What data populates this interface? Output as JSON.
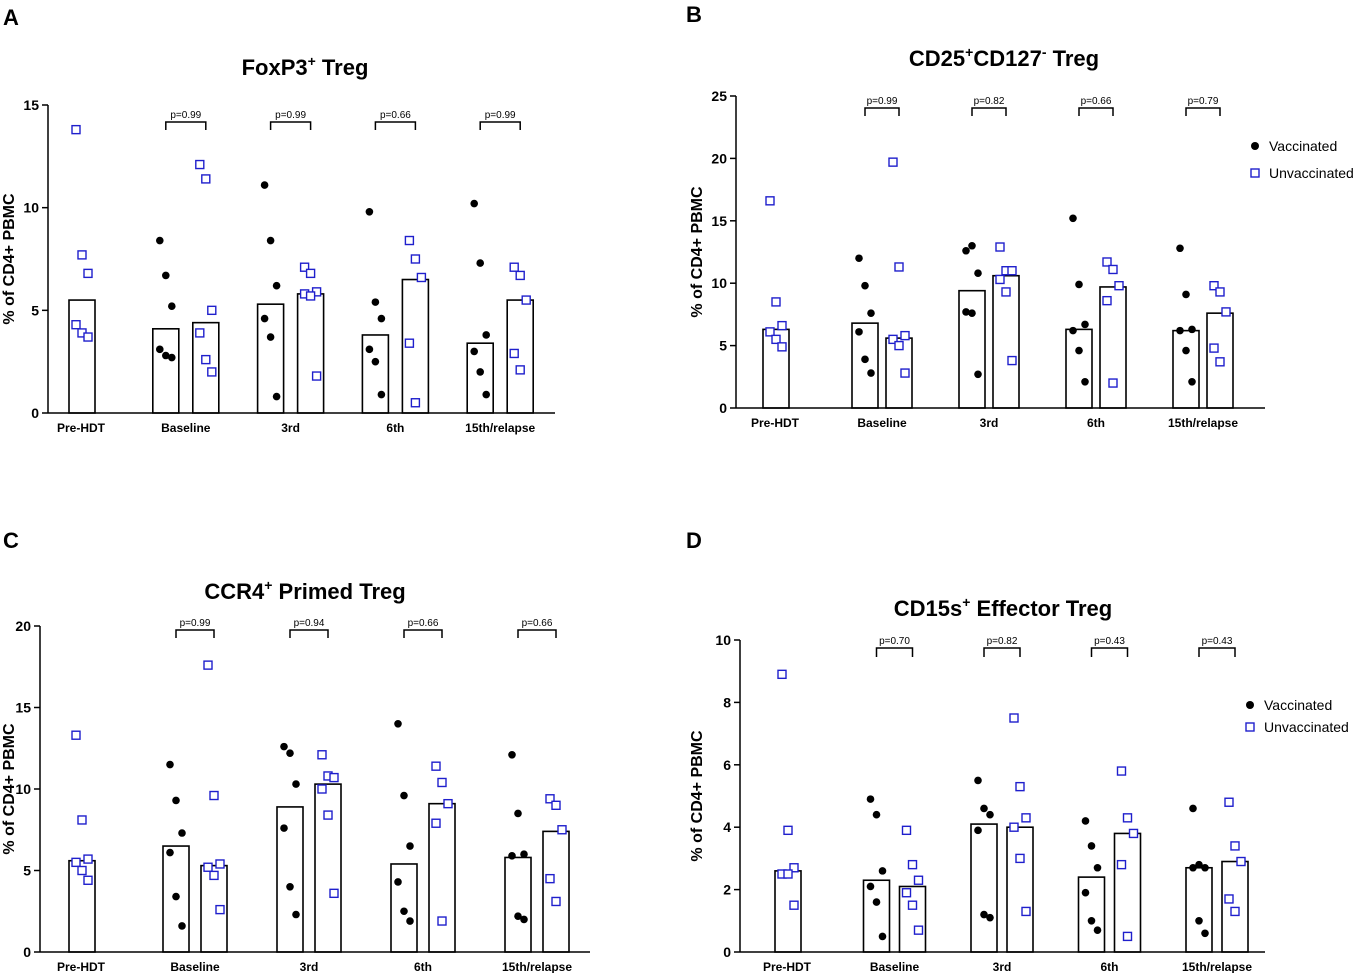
{
  "legend_labels": {
    "vaccinated": "Vaccinated",
    "unvaccinated": "Unvaccinated"
  },
  "colors": {
    "vaccinated": "#000000",
    "unvaccinated": "#1f1fcc",
    "axis": "#000000"
  },
  "chart_data": [
    {
      "letter": "A",
      "type": "bar",
      "title_parts": [
        {
          "t": "FoxP3"
        },
        {
          "t": "+",
          "sup": true
        },
        {
          "t": " Treg"
        }
      ],
      "ylabel": "% of CD4+ PBMC",
      "ylim": [
        0,
        15
      ],
      "yticks": [
        0,
        5,
        10,
        15
      ],
      "legend": "none",
      "categories": [
        "Pre-HDT",
        "Baseline",
        "3rd",
        "6th",
        "15th/relapse"
      ],
      "series": [
        {
          "name": "Vaccinated",
          "bars": [
            null,
            4.1,
            5.3,
            3.8,
            3.4
          ],
          "points": [
            [],
            [
              8.4,
              6.7,
              5.2,
              3.1,
              2.8,
              2.7
            ],
            [
              11.1,
              8.4,
              6.2,
              4.6,
              3.7,
              0.8
            ],
            [
              9.8,
              5.4,
              4.6,
              3.1,
              2.5,
              0.9
            ],
            [
              10.2,
              7.3,
              3.8,
              3.0,
              2.0,
              0.9
            ]
          ]
        },
        {
          "name": "Unvaccinated",
          "bars": [
            5.5,
            4.4,
            5.8,
            6.5,
            5.5
          ],
          "points": [
            [
              13.8,
              7.7,
              6.8,
              4.3,
              3.9,
              3.7
            ],
            [
              12.1,
              11.4,
              5.0,
              3.9,
              2.6,
              2.0
            ],
            [
              7.1,
              6.8,
              5.9,
              5.8,
              5.7,
              1.8
            ],
            [
              8.4,
              7.5,
              6.6,
              3.4,
              0.5
            ],
            [
              7.1,
              6.7,
              5.5,
              2.9,
              2.1
            ]
          ]
        }
      ],
      "annotations": [
        "p=0.99",
        "p=0.99",
        "p=0.66",
        "p=0.99"
      ]
    },
    {
      "letter": "B",
      "type": "bar",
      "title_parts": [
        {
          "t": "CD25"
        },
        {
          "t": "+",
          "sup": true
        },
        {
          "t": "CD127"
        },
        {
          "t": "-",
          "sup": true
        },
        {
          "t": " Treg"
        }
      ],
      "ylabel": "% of CD4+ PBMC",
      "ylim": [
        0,
        25
      ],
      "yticks": [
        0,
        5,
        10,
        15,
        20,
        25
      ],
      "legend": "top-right",
      "categories": [
        "Pre-HDT",
        "Baseline",
        "3rd",
        "6th",
        "15th/relapse"
      ],
      "series": [
        {
          "name": "Vaccinated",
          "bars": [
            null,
            6.8,
            9.4,
            6.3,
            6.2
          ],
          "points": [
            [],
            [
              12.0,
              9.8,
              7.6,
              6.1,
              3.9,
              2.8
            ],
            [
              12.6,
              13.0,
              10.8,
              7.7,
              7.6,
              2.7
            ],
            [
              15.2,
              9.9,
              6.7,
              6.2,
              4.6,
              2.1
            ],
            [
              12.8,
              9.1,
              6.3,
              6.2,
              4.6,
              2.1
            ]
          ]
        },
        {
          "name": "Unvaccinated",
          "bars": [
            6.3,
            5.6,
            10.6,
            9.7,
            7.6
          ],
          "points": [
            [
              16.6,
              8.5,
              6.6,
              6.1,
              5.5,
              4.9
            ],
            [
              19.7,
              11.3,
              5.8,
              5.5,
              5.0,
              2.8
            ],
            [
              12.9,
              11.0,
              11.0,
              10.3,
              9.3,
              3.8
            ],
            [
              11.7,
              11.1,
              9.8,
              8.6,
              2.0
            ],
            [
              9.8,
              9.3,
              7.7,
              4.8,
              3.7
            ]
          ]
        }
      ],
      "annotations": [
        "p=0.99",
        "p=0.82",
        "p=0.66",
        "p=0.79"
      ]
    },
    {
      "letter": "C",
      "type": "bar",
      "title_parts": [
        {
          "t": "CCR4"
        },
        {
          "t": "+",
          "sup": true
        },
        {
          "t": " Primed Treg"
        }
      ],
      "ylabel": "% of CD4+ PBMC",
      "ylim": [
        0,
        20
      ],
      "yticks": [
        0,
        5,
        10,
        15,
        20
      ],
      "legend": "none",
      "categories": [
        "Pre-HDT",
        "Baseline",
        "3rd",
        "6th",
        "15th/relapse"
      ],
      "series": [
        {
          "name": "Vaccinated",
          "bars": [
            null,
            6.5,
            8.9,
            5.4,
            5.8
          ],
          "points": [
            [],
            [
              11.5,
              9.3,
              7.3,
              6.1,
              3.4,
              1.6
            ],
            [
              12.6,
              12.2,
              10.3,
              7.6,
              4.0,
              2.3
            ],
            [
              14.0,
              9.6,
              6.5,
              4.3,
              2.5,
              1.9
            ],
            [
              12.1,
              8.5,
              6.0,
              5.9,
              2.2,
              2.0
            ]
          ]
        },
        {
          "name": "Unvaccinated",
          "bars": [
            5.6,
            5.3,
            10.3,
            9.1,
            7.4
          ],
          "points": [
            [
              13.3,
              8.1,
              5.7,
              5.5,
              5.0,
              4.4
            ],
            [
              17.6,
              9.6,
              5.4,
              5.2,
              4.7,
              2.6
            ],
            [
              12.1,
              10.8,
              10.7,
              10.0,
              8.4,
              3.6
            ],
            [
              11.4,
              10.4,
              9.1,
              7.9,
              1.9
            ],
            [
              9.4,
              9.0,
              7.5,
              4.5,
              3.1
            ]
          ]
        }
      ],
      "annotations": [
        "p=0.99",
        "p=0.94",
        "p=0.66",
        "p=0.66"
      ]
    },
    {
      "letter": "D",
      "type": "bar",
      "title_parts": [
        {
          "t": "CD15s"
        },
        {
          "t": "+",
          "sup": true
        },
        {
          "t": " Effector Treg"
        }
      ],
      "ylabel": "% of CD4+ PBMC",
      "ylim": [
        0,
        10
      ],
      "yticks": [
        0,
        2,
        4,
        6,
        8,
        10
      ],
      "legend": "top-right",
      "categories": [
        "Pre-HDT",
        "Baseline",
        "3rd",
        "6th",
        "15th/relapse"
      ],
      "series": [
        {
          "name": "Vaccinated",
          "bars": [
            null,
            2.3,
            4.1,
            2.4,
            2.7
          ],
          "points": [
            [],
            [
              4.9,
              4.4,
              2.6,
              2.1,
              1.6,
              0.5
            ],
            [
              5.5,
              4.6,
              4.4,
              3.9,
              1.2,
              1.1
            ],
            [
              4.2,
              3.4,
              2.7,
              1.9,
              1.0,
              0.7
            ],
            [
              4.6,
              2.8,
              2.7,
              2.7,
              1.0,
              0.6
            ]
          ]
        },
        {
          "name": "Unvaccinated",
          "bars": [
            2.6,
            2.1,
            4.0,
            3.8,
            2.9
          ],
          "points": [
            [
              8.9,
              3.9,
              2.7,
              2.5,
              2.5,
              1.5
            ],
            [
              3.9,
              2.8,
              2.3,
              1.9,
              1.5,
              0.7
            ],
            [
              7.5,
              5.3,
              4.3,
              4.0,
              3.0,
              1.3
            ],
            [
              5.8,
              4.3,
              3.8,
              2.8,
              0.5
            ],
            [
              4.8,
              3.4,
              2.9,
              1.7,
              1.3
            ]
          ]
        }
      ],
      "annotations": [
        "p=0.70",
        "p=0.82",
        "p=0.43",
        "p=0.43"
      ]
    }
  ]
}
